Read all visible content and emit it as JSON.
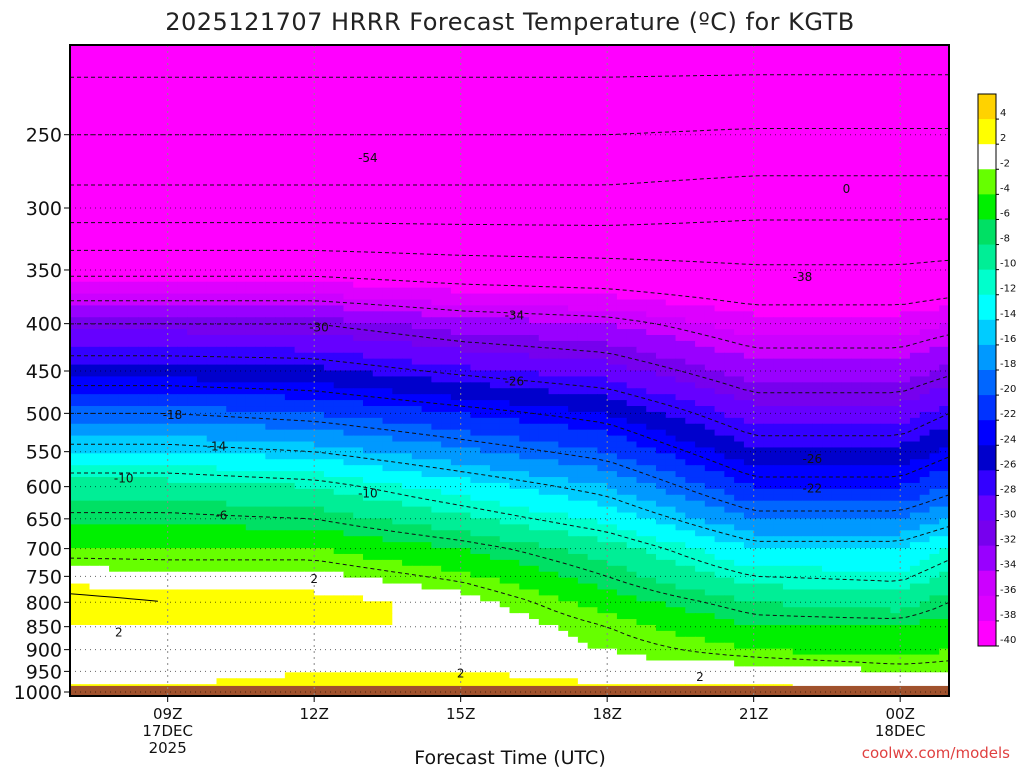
{
  "chart_data": {
    "type": "heatmap",
    "title": "2025121707 HRRR Forecast Temperature (ºC) for KGTB",
    "xlabel": "Forecast Time (UTC)",
    "ylabel": "",
    "y_scale": "log",
    "y_direction": "inverted",
    "ylim": [
      1010,
      200
    ],
    "xlim_hours": [
      7,
      25
    ],
    "y_ticks": [
      "250",
      "300",
      "350",
      "400",
      "450",
      "500",
      "550",
      "600",
      "650",
      "700",
      "750",
      "800",
      "850",
      "900",
      "950",
      "1000"
    ],
    "y_tick_values": [
      250,
      300,
      350,
      400,
      450,
      500,
      550,
      600,
      650,
      700,
      750,
      800,
      850,
      900,
      950,
      1000
    ],
    "x_ticks": [
      {
        "hour": 9,
        "lines": [
          "09Z",
          "17DEC",
          "2025"
        ]
      },
      {
        "hour": 12,
        "lines": [
          "12Z"
        ]
      },
      {
        "hour": 15,
        "lines": [
          "15Z"
        ]
      },
      {
        "hour": 18,
        "lines": [
          "18Z"
        ]
      },
      {
        "hour": 21,
        "lines": [
          "21Z"
        ]
      },
      {
        "hour": 24,
        "lines": [
          "00Z",
          "18DEC"
        ]
      }
    ],
    "colorbar": {
      "ticks": [
        "4",
        "2",
        "-2",
        "-4",
        "-6",
        "-8",
        "-10",
        "-12",
        "-14",
        "-16",
        "-18",
        "-20",
        "-22",
        "-24",
        "-26",
        "-28",
        "-30",
        "-32",
        "-34",
        "-36",
        "-38",
        "-40"
      ],
      "colors": [
        "#ffd200",
        "#ffff00",
        "#ffffff",
        "#66ff00",
        "#00f000",
        "#00e064",
        "#00ee96",
        "#00ffcc",
        "#00ffff",
        "#00ccff",
        "#0099ff",
        "#0066ff",
        "#0033ff",
        "#0000ff",
        "#0000cc",
        "#3300ff",
        "#6600ff",
        "#7700ee",
        "#9900ff",
        "#cc00ff",
        "#dd00ff",
        "#ff00ff"
      ]
    },
    "contour_labels": [
      {
        "text": "-54",
        "hour": 13.1,
        "p": 265
      },
      {
        "text": "0",
        "hour": 22.9,
        "p": 286
      },
      {
        "text": "-38",
        "hour": 22.0,
        "p": 356
      },
      {
        "text": "-34",
        "hour": 16.1,
        "p": 392
      },
      {
        "text": "-30",
        "hour": 12.1,
        "p": 404
      },
      {
        "text": "-26",
        "hour": 16.1,
        "p": 462
      },
      {
        "text": "-18",
        "hour": 9.1,
        "p": 502
      },
      {
        "text": "-14",
        "hour": 10.0,
        "p": 543
      },
      {
        "text": "-26",
        "hour": 22.2,
        "p": 560
      },
      {
        "text": "-10",
        "hour": 8.1,
        "p": 588
      },
      {
        "text": "-22",
        "hour": 22.2,
        "p": 603
      },
      {
        "text": "-10",
        "hour": 13.1,
        "p": 610
      },
      {
        "text": "-6",
        "hour": 10.1,
        "p": 645
      },
      {
        "text": "2",
        "hour": 12.0,
        "p": 755
      },
      {
        "text": "2",
        "hour": 8.0,
        "p": 862
      },
      {
        "text": "2",
        "hour": 15.0,
        "p": 955
      },
      {
        "text": "2",
        "hour": 19.9,
        "p": 963
      }
    ]
  },
  "credit": "coolwx.com/models"
}
